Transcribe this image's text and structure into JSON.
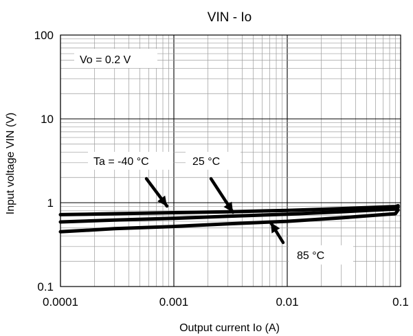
{
  "chart_data": {
    "type": "line",
    "title": "VIN - Io",
    "xlabel": "Output current Io (A)",
    "ylabel": "Input voltage VIN (V)",
    "x_scale": "log",
    "y_scale": "log",
    "xlim": [
      0.0001,
      0.1
    ],
    "ylim": [
      0.1,
      100
    ],
    "x_ticks": [
      "0.0001",
      "0.001",
      "0.01",
      "0.1"
    ],
    "y_ticks": [
      "100",
      "10",
      "1",
      "0.1"
    ],
    "grid": true,
    "condition_label": "Vo = 0.2 V",
    "series": [
      {
        "name": "Ta = -40 °C",
        "color": "#000000",
        "x": [
          0.0001,
          0.0003,
          0.001,
          0.003,
          0.01,
          0.03,
          0.09,
          0.095
        ],
        "y": [
          0.72,
          0.74,
          0.76,
          0.78,
          0.81,
          0.85,
          0.9,
          0.92
        ]
      },
      {
        "name": "25 °C",
        "color": "#000000",
        "x": [
          0.0001,
          0.0003,
          0.001,
          0.003,
          0.01,
          0.03,
          0.09,
          0.095
        ],
        "y": [
          0.59,
          0.62,
          0.65,
          0.69,
          0.73,
          0.78,
          0.84,
          0.88
        ]
      },
      {
        "name": "85 °C",
        "color": "#000000",
        "x": [
          0.0001,
          0.0003,
          0.001,
          0.003,
          0.01,
          0.03,
          0.09,
          0.095
        ],
        "y": [
          0.45,
          0.49,
          0.52,
          0.56,
          0.6,
          0.66,
          0.74,
          0.82
        ]
      }
    ],
    "annotations": [
      {
        "text": "Ta = -40 °C",
        "points_to_series": "Ta = -40 °C"
      },
      {
        "text": "25 °C",
        "points_to_series": "25 °C"
      },
      {
        "text": "85 °C",
        "points_to_series": "85 °C"
      }
    ]
  }
}
